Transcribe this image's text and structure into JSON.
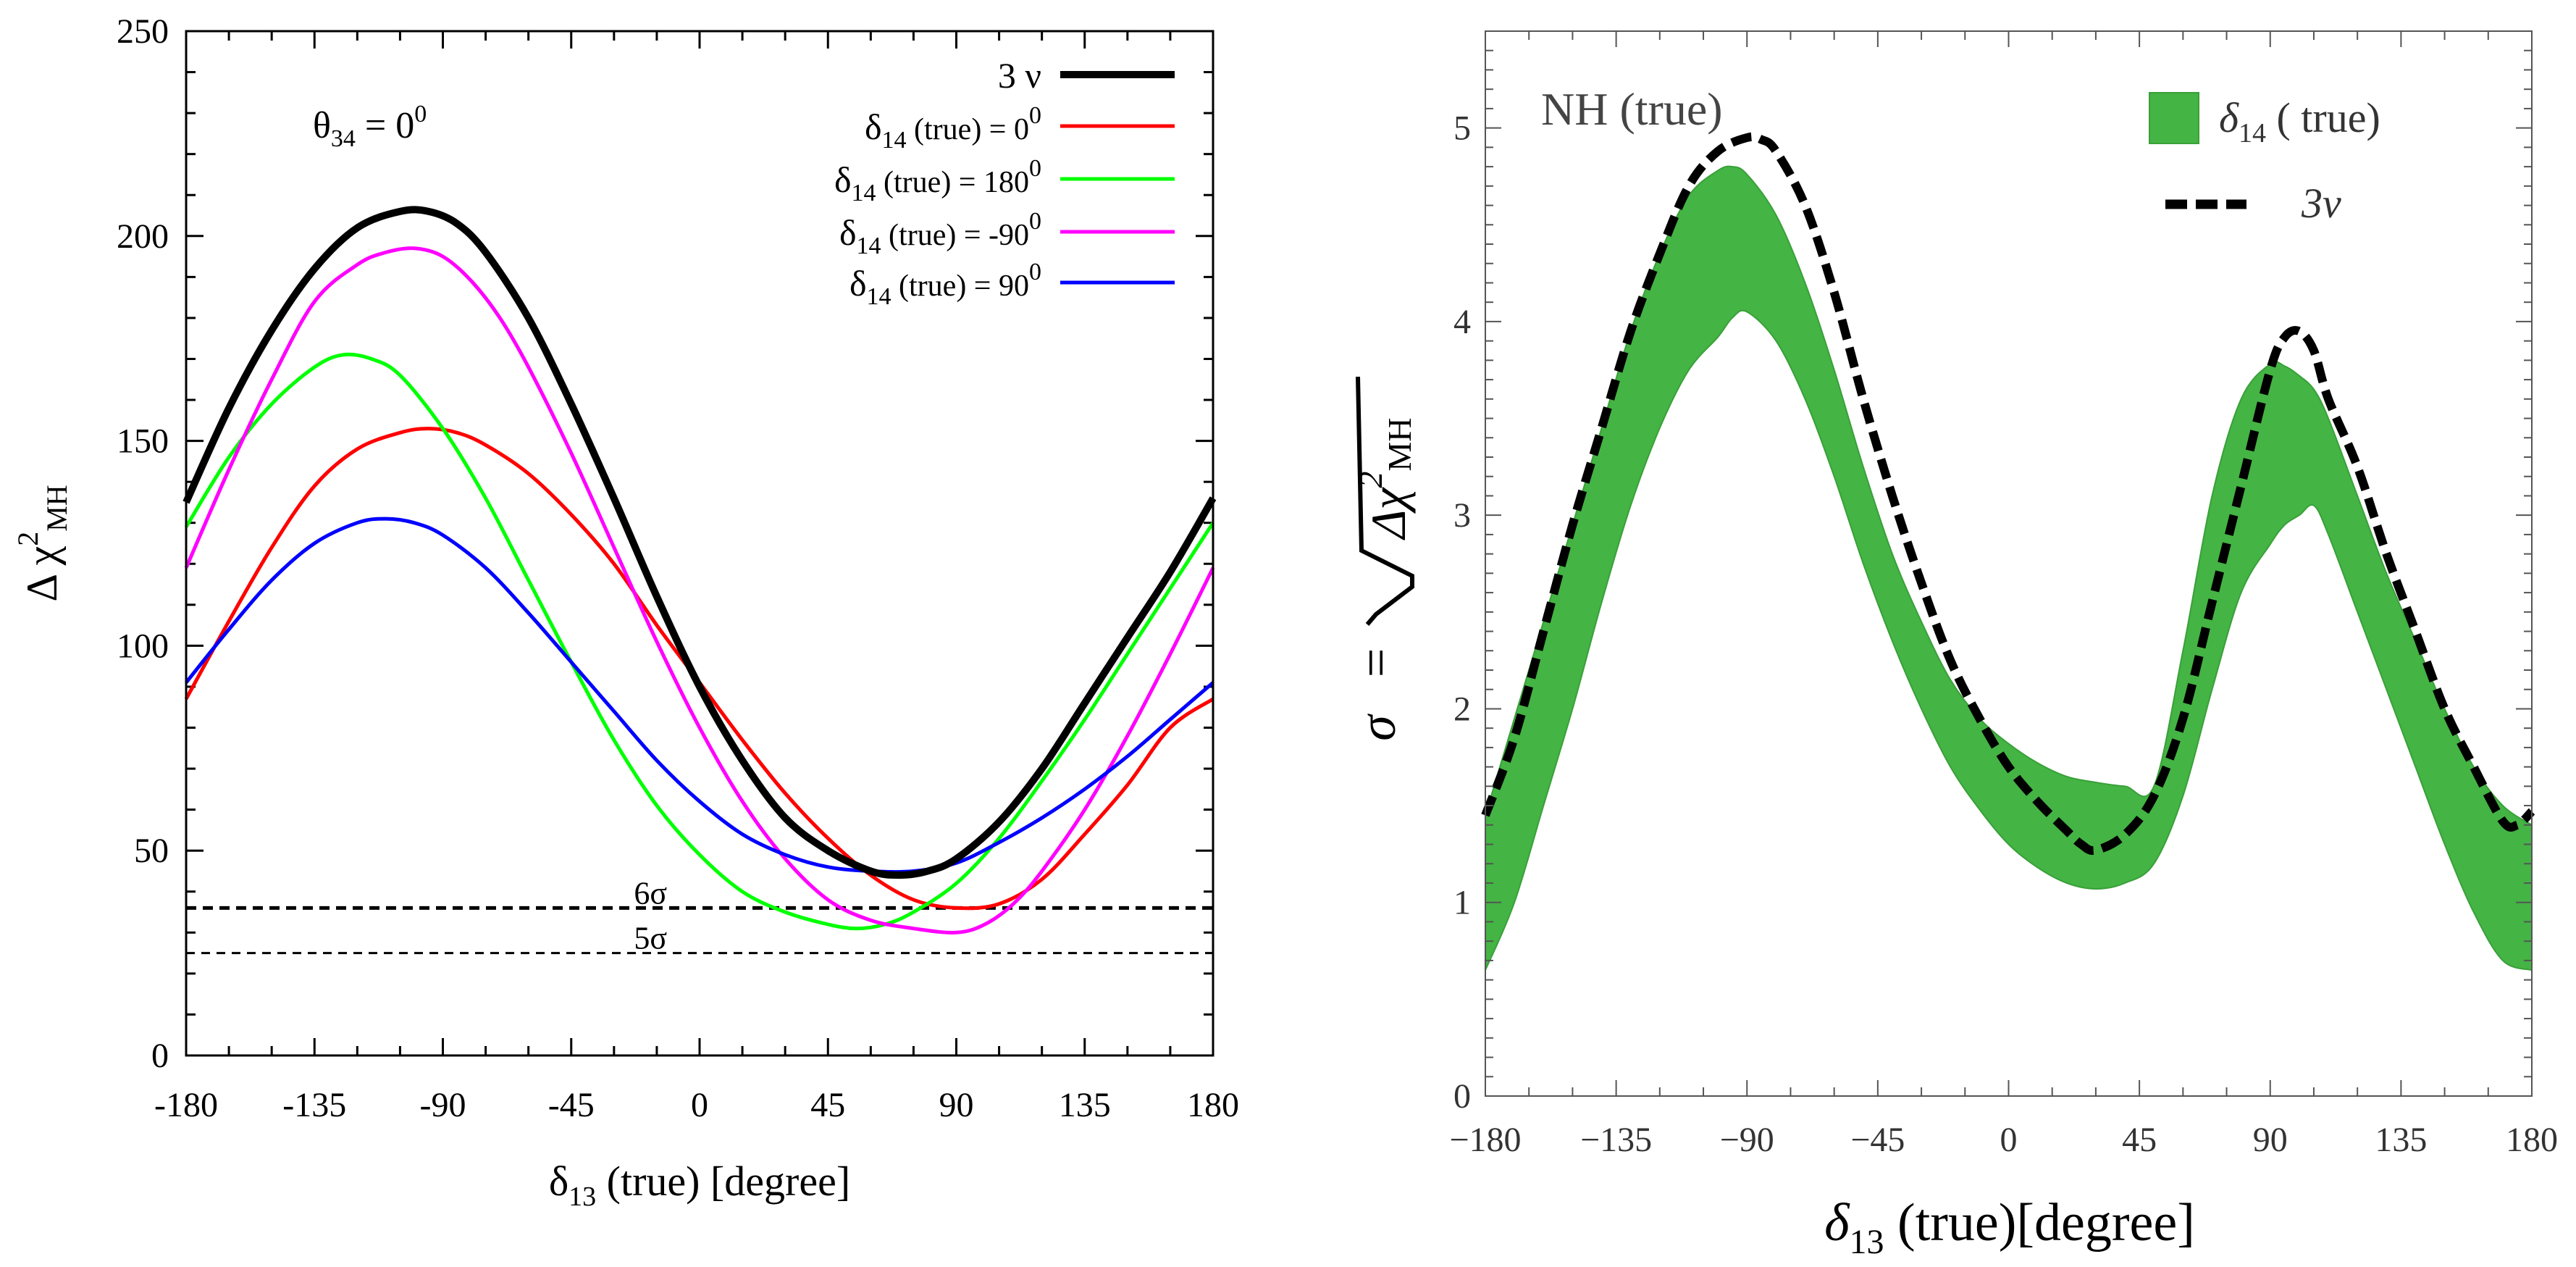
{
  "chart_data": [
    {
      "type": "line",
      "ylabel_main": "Δ χ",
      "ylabel_sup": "2",
      "ylabel_sub": "MH",
      "xlabel_main": "δ",
      "xlabel_sub": "13",
      "xlabel_rest": " (true) [degree]",
      "annotation_main": "θ",
      "annotation_sub": "34",
      "annotation_eq": " = 0",
      "annotation_sup": "0",
      "xlim": [
        -180,
        180
      ],
      "ylim": [
        0,
        250
      ],
      "xticks": [
        "-180",
        "-135",
        "-90",
        "-45",
        "0",
        "45",
        "90",
        "135",
        "180"
      ],
      "yticks": [
        "0",
        "50",
        "100",
        "150",
        "200",
        "250"
      ],
      "hlines": [
        {
          "label": "6σ",
          "y": 36
        },
        {
          "label": "5σ",
          "y": 25
        }
      ],
      "legend_position": "top-right",
      "series": [
        {
          "legend": {
            "main": "3 ν",
            "sub": "",
            "rest": "",
            "sup": ""
          },
          "color": "#000000",
          "x": [
            -180,
            -165,
            -150,
            -135,
            -120,
            -105,
            -95,
            -85,
            -75,
            -60,
            -45,
            -30,
            -15,
            0,
            15,
            30,
            45,
            60,
            70,
            80,
            90,
            105,
            120,
            135,
            150,
            165,
            180
          ],
          "y": [
            135,
            158,
            177,
            192,
            202,
            206,
            206,
            203,
            196,
            180,
            159,
            136,
            112,
            90,
            72,
            58,
            50,
            45,
            44,
            45,
            48,
            57,
            70,
            86,
            102,
            118,
            136
          ]
        },
        {
          "legend": {
            "main": "δ",
            "sub": "14",
            "rest": " (true) = 0",
            "sup": "0"
          },
          "color": "#ff0000",
          "x": [
            -180,
            -165,
            -150,
            -135,
            -120,
            -105,
            -95,
            -85,
            -75,
            -60,
            -45,
            -30,
            -15,
            0,
            15,
            30,
            45,
            60,
            75,
            90,
            105,
            120,
            135,
            150,
            165,
            180
          ],
          "y": [
            87,
            106,
            124,
            139,
            148,
            152,
            153,
            152,
            149,
            142,
            132,
            120,
            105,
            91,
            77,
            64,
            53,
            44,
            38,
            36,
            37,
            43,
            54,
            66,
            80,
            87
          ]
        },
        {
          "legend": {
            "main": "δ",
            "sub": "14",
            "rest": " (true) = 180",
            "sup": "0"
          },
          "color": "#00ff00",
          "x": [
            -180,
            -165,
            -150,
            -135,
            -125,
            -115,
            -105,
            -90,
            -75,
            -60,
            -45,
            -30,
            -15,
            0,
            15,
            30,
            45,
            55,
            65,
            75,
            90,
            105,
            120,
            135,
            150,
            165,
            180
          ],
          "y": [
            129,
            146,
            159,
            168,
            171,
            170,
            166,
            153,
            136,
            116,
            96,
            77,
            61,
            49,
            40,
            35,
            32,
            31,
            32,
            35,
            42,
            53,
            67,
            82,
            98,
            114,
            130
          ]
        },
        {
          "legend": {
            "main": "δ",
            "sub": "14",
            "rest": " (true) = -90",
            "sup": "0"
          },
          "color": "#ff00ff",
          "x": [
            -180,
            -165,
            -150,
            -135,
            -120,
            -110,
            -100,
            -90,
            -80,
            -70,
            -60,
            -45,
            -30,
            -15,
            0,
            15,
            30,
            45,
            60,
            75,
            90,
            100,
            110,
            120,
            135,
            150,
            165,
            180
          ],
          "y": [
            119,
            143,
            165,
            184,
            193,
            196,
            197,
            195,
            189,
            180,
            168,
            147,
            124,
            101,
            80,
            62,
            48,
            38,
            33,
            31,
            30,
            32,
            37,
            45,
            60,
            78,
            98,
            119
          ]
        },
        {
          "legend": {
            "main": "δ",
            "sub": "14",
            "rest": " (true) = 90",
            "sup": "0"
          },
          "color": "#0000ff",
          "x": [
            -180,
            -165,
            -150,
            -135,
            -120,
            -110,
            -100,
            -90,
            -75,
            -60,
            -45,
            -30,
            -15,
            0,
            15,
            30,
            45,
            60,
            75,
            90,
            105,
            120,
            135,
            150,
            165,
            180
          ],
          "y": [
            91,
            104,
            116,
            125,
            130,
            131,
            130,
            127,
            119,
            108,
            96,
            84,
            72,
            62,
            54,
            49,
            46,
            45,
            45,
            47,
            52,
            58,
            65,
            73,
            82,
            91
          ]
        }
      ]
    },
    {
      "type": "area",
      "ylabel_sigma": "σ",
      "ylabel_eq": "=",
      "ylabel_delta": "Δχ",
      "ylabel_sup": "2",
      "ylabel_sub": "MH",
      "xlabel_main": "δ",
      "xlabel_sub": "13",
      "xlabel_rest": " (true)[degree]",
      "annotation": "NH (true)",
      "xlim": [
        -180,
        180
      ],
      "ylim": [
        0,
        5.5
      ],
      "xticks": [
        "−180",
        "−135",
        "−90",
        "−45",
        "0",
        "45",
        "90",
        "135",
        "180"
      ],
      "yticks": [
        "0",
        "1",
        "2",
        "3",
        "4",
        "5"
      ],
      "legend_position": "top-right",
      "band": {
        "legend_main": "δ",
        "legend_sub": "14",
        "legend_rest": " ( true)",
        "color": "#44b444",
        "x": [
          -180,
          -170,
          -160,
          -150,
          -140,
          -130,
          -120,
          -110,
          -100,
          -95,
          -90,
          -80,
          -70,
          -60,
          -50,
          -40,
          -30,
          -20,
          -10,
          0,
          10,
          20,
          30,
          40,
          50,
          60,
          70,
          80,
          90,
          95,
          100,
          105,
          110,
          120,
          130,
          140,
          150,
          160,
          170,
          180
        ],
        "upper": [
          1.45,
          1.95,
          2.45,
          2.95,
          3.45,
          3.95,
          4.35,
          4.65,
          4.78,
          4.8,
          4.76,
          4.55,
          4.2,
          3.75,
          3.25,
          2.8,
          2.45,
          2.15,
          1.95,
          1.82,
          1.72,
          1.65,
          1.62,
          1.6,
          1.6,
          2.3,
          3.1,
          3.6,
          3.78,
          3.77,
          3.72,
          3.65,
          3.5,
          3.1,
          2.7,
          2.35,
          2.0,
          1.7,
          1.5,
          1.4
        ],
        "lower": [
          0.65,
          1.0,
          1.5,
          2.0,
          2.55,
          3.05,
          3.45,
          3.75,
          3.92,
          4.02,
          4.05,
          3.9,
          3.6,
          3.2,
          2.75,
          2.35,
          2.0,
          1.7,
          1.48,
          1.3,
          1.18,
          1.1,
          1.07,
          1.1,
          1.2,
          1.55,
          2.1,
          2.6,
          2.85,
          2.95,
          3.0,
          3.05,
          2.9,
          2.5,
          2.1,
          1.7,
          1.3,
          0.95,
          0.7,
          0.65
        ]
      },
      "series": [
        {
          "legend": "3ν",
          "color": "#000000",
          "x": [
            -180,
            -170,
            -160,
            -150,
            -140,
            -130,
            -120,
            -110,
            -100,
            -90,
            -85,
            -80,
            -70,
            -60,
            -50,
            -40,
            -30,
            -20,
            -10,
            0,
            10,
            20,
            25,
            30,
            40,
            50,
            60,
            70,
            80,
            90,
            95,
            100,
            105,
            110,
            120,
            130,
            140,
            150,
            160,
            170,
            175,
            180
          ],
          "y": [
            1.45,
            1.85,
            2.4,
            2.95,
            3.45,
            3.95,
            4.35,
            4.7,
            4.88,
            4.95,
            4.94,
            4.88,
            4.6,
            4.15,
            3.6,
            3.1,
            2.65,
            2.25,
            1.95,
            1.7,
            1.52,
            1.37,
            1.3,
            1.27,
            1.35,
            1.55,
            1.95,
            2.55,
            3.15,
            3.75,
            3.92,
            3.95,
            3.85,
            3.6,
            3.25,
            2.8,
            2.4,
            2.0,
            1.7,
            1.42,
            1.4,
            1.47
          ]
        }
      ]
    }
  ]
}
